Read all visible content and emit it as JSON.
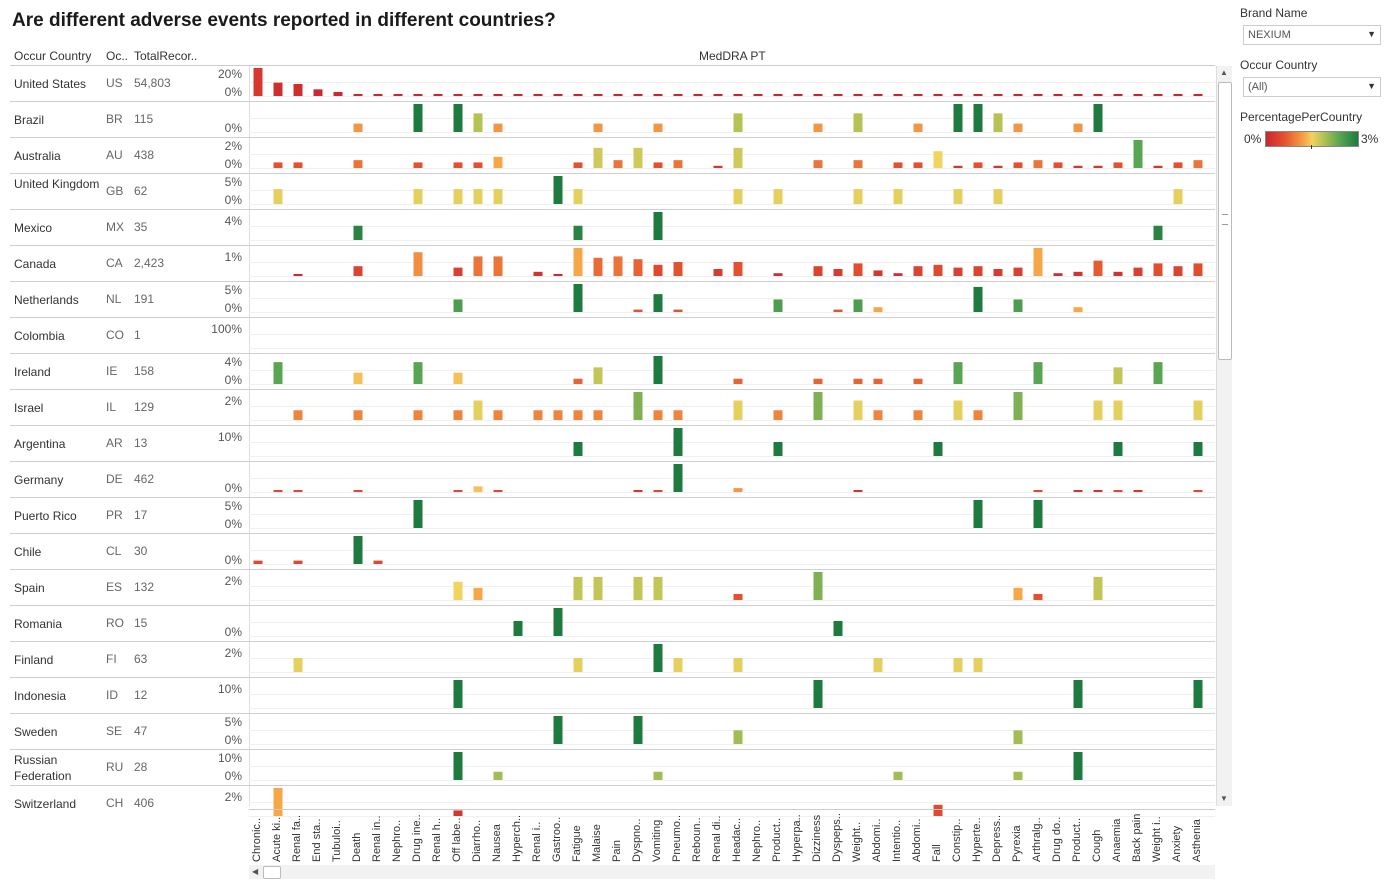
{
  "title": "Are different adverse events reported in different countries?",
  "headers": {
    "country": "Occur Country",
    "code": "Oc..",
    "total": "TotalRecor..",
    "measure": "MedDRA PT"
  },
  "sidebar": {
    "brand_label": "Brand Name",
    "brand_value": "NEXIUM",
    "country_label": "Occur Country",
    "country_value": "(All)",
    "legend_title": "PercentagePerCountry",
    "legend_min": "0%",
    "legend_max": "3%"
  },
  "colors": {
    "scale": [
      "#c9262e",
      "#e3522f",
      "#f6a748",
      "#f1d361",
      "#b7c255",
      "#59a553",
      "#1e7a3e"
    ]
  },
  "chart_data": {
    "type": "bar",
    "title": "Are different adverse events reported in different countries?",
    "measure": "PercentagePerCountry",
    "categories": [
      "Chronic..",
      "Acute ki..",
      "Renal fa..",
      "End sta..",
      "Tubuloi..",
      "Death",
      "Renal in..",
      "Nephro..",
      "Drug ine..",
      "Renal h..",
      "Off labe..",
      "Diarrho..",
      "Nausea",
      "Hyperch..",
      "Renal i..",
      "Gastroo..",
      "Fatigue",
      "Malaise",
      "Pain",
      "Dyspno..",
      "Vomiting",
      "Pneumo..",
      "Reboun..",
      "Renal di..",
      "Headac..",
      "Nephro..",
      "Product..",
      "Hyperpa..",
      "Dizziness",
      "Dyspeps..",
      "Weight..",
      "Abdomi..",
      "Intentio..",
      "Abdomi..",
      "Fall",
      "Constip..",
      "Hyperte..",
      "Depress..",
      "Pyrexia",
      "Arthralg..",
      "Drug do..",
      "Product..",
      "Cough",
      "Anaemia",
      "Back pain",
      "Weight i..",
      "Anxiety",
      "Asthenia"
    ],
    "rows": [
      {
        "country": "United States",
        "code": "US",
        "total": "54,803",
        "ticks": [
          "20%",
          "0%"
        ],
        "values": [
          0.21,
          0.1,
          0.09,
          0.05,
          0.03,
          0.01,
          0.01,
          0.01,
          0.01,
          0.01,
          0.01,
          0.005,
          0.005,
          0.005,
          0.005,
          0.005,
          0.005,
          0.005,
          0.005,
          0.005,
          0.005,
          0.005,
          0.005,
          0.005,
          0.005,
          0.005,
          0.005,
          0.005,
          0.005,
          0.005,
          0.005,
          0.005,
          0.005,
          0.005,
          0.005,
          0.005,
          0.005,
          0.005,
          0.005,
          0.005,
          0.005,
          0.005,
          0.005,
          0.005,
          0.005,
          0.005,
          0.005,
          0.005
        ]
      },
      {
        "country": "Brazil",
        "code": "BR",
        "total": "115",
        "ticks": [
          "0%"
        ],
        "values": [
          0,
          0,
          0,
          0,
          0,
          0.9,
          0,
          0,
          3.0,
          0,
          3.0,
          2.0,
          0.9,
          0,
          0,
          0,
          0,
          0.9,
          0,
          0,
          0.9,
          0,
          0,
          0,
          2.0,
          0,
          0,
          0,
          0.9,
          0,
          2.0,
          0,
          0,
          0.9,
          0,
          3.0,
          3.0,
          2.0,
          0.9,
          0,
          0,
          0.9,
          3.0,
          0,
          0,
          0,
          0,
          0
        ]
      },
      {
        "country": "Australia",
        "code": "AU",
        "total": "438",
        "ticks": [
          "2%",
          "0%"
        ],
        "values": [
          0,
          0.5,
          0.5,
          0,
          0,
          0.7,
          0,
          0,
          0.5,
          0,
          0.5,
          0.5,
          1.0,
          0,
          0,
          0,
          0.5,
          1.8,
          0.7,
          1.8,
          0.5,
          0.7,
          0,
          0.2,
          1.8,
          0,
          0,
          0,
          0.7,
          0,
          0.7,
          0,
          0.5,
          0.5,
          1.5,
          0.2,
          0.5,
          0.2,
          0.5,
          0.7,
          0.5,
          0.2,
          0.2,
          0.5,
          2.5,
          0.2,
          0.5,
          0.7
        ]
      },
      {
        "country": "United Kingdom",
        "code": "GB",
        "total": "62",
        "ticks": [
          "5%",
          "0%"
        ],
        "values": [
          0,
          1.6,
          0,
          0,
          0,
          0,
          0,
          0,
          1.6,
          0,
          1.6,
          1.6,
          1.6,
          0,
          0,
          3.0,
          1.6,
          0,
          0,
          0,
          0,
          0,
          0,
          0,
          1.6,
          0,
          1.6,
          0,
          0,
          0,
          1.6,
          0,
          1.6,
          0,
          0,
          1.6,
          0,
          1.6,
          0,
          0,
          0,
          0,
          0,
          0,
          0,
          0,
          1.6,
          0
        ]
      },
      {
        "country": "Mexico",
        "code": "MX",
        "total": "35",
        "ticks": [
          "4%"
        ],
        "values": [
          0,
          0,
          0,
          0,
          0,
          2.9,
          0,
          0,
          0,
          0,
          0,
          0,
          0,
          0,
          0,
          0,
          2.9,
          0,
          0,
          0,
          5.7,
          0,
          0,
          0,
          0,
          0,
          0,
          0,
          0,
          0,
          0,
          0,
          0,
          0,
          0,
          0,
          0,
          0,
          0,
          0,
          0,
          0,
          0,
          0,
          0,
          2.9,
          0,
          0
        ]
      },
      {
        "country": "Canada",
        "code": "CA",
        "total": "2,423",
        "ticks": [
          "1%"
        ],
        "values": [
          0,
          0,
          0.05,
          0,
          0,
          0.35,
          0,
          0,
          0.85,
          0,
          0.3,
          0.7,
          0.7,
          0,
          0.15,
          0.05,
          1.0,
          0.65,
          0.7,
          0.6,
          0.4,
          0.5,
          0,
          0.25,
          0.5,
          0,
          0.1,
          0,
          0.35,
          0.25,
          0.45,
          0.2,
          0.1,
          0.35,
          0.4,
          0.3,
          0.35,
          0.25,
          0.3,
          1.0,
          0.1,
          0.15,
          0.55,
          0.15,
          0.3,
          0.45,
          0.35,
          0.45
        ]
      },
      {
        "country": "Netherlands",
        "code": "NL",
        "total": "191",
        "ticks": [
          "5%",
          "0%"
        ],
        "values": [
          0,
          0,
          0,
          0,
          0,
          0,
          0,
          0,
          0,
          0,
          2.6,
          0,
          0,
          0,
          0,
          0,
          5.8,
          0,
          0,
          0.5,
          3.7,
          0.5,
          0,
          0,
          0,
          0,
          2.6,
          0,
          0,
          0.5,
          2.6,
          1.0,
          0,
          0,
          0,
          0,
          5.2,
          0,
          2.6,
          0,
          0,
          1.0,
          0,
          0,
          0,
          0,
          0,
          0
        ]
      },
      {
        "country": "Colombia",
        "code": "CO",
        "total": "1",
        "ticks": [
          "100%"
        ],
        "values": [
          0,
          0,
          0,
          0,
          0,
          0,
          0,
          0,
          0,
          0,
          0,
          0,
          0,
          0,
          0,
          0,
          0,
          0,
          0,
          0,
          0,
          0,
          0,
          0,
          0,
          0,
          0,
          0,
          0,
          0,
          0,
          0,
          0,
          0,
          0,
          0,
          0,
          0,
          0,
          0,
          0,
          0,
          0,
          0,
          0,
          0,
          0,
          0
        ]
      },
      {
        "country": "Ireland",
        "code": "IE",
        "total": "158",
        "ticks": [
          "4%",
          "0%"
        ],
        "values": [
          0,
          2.5,
          0,
          0,
          0,
          1.3,
          0,
          0,
          2.5,
          0,
          1.3,
          0,
          0,
          0,
          0,
          0,
          0.6,
          1.9,
          0,
          0,
          3.2,
          0,
          0,
          0,
          0.6,
          0,
          0,
          0,
          0.6,
          0,
          0.6,
          0.6,
          0,
          0.6,
          0,
          2.5,
          0,
          0,
          0,
          2.5,
          0,
          0,
          0,
          1.9,
          0,
          2.5,
          0,
          0
        ]
      },
      {
        "country": "Israel",
        "code": "IL",
        "total": "129",
        "ticks": [
          "2%"
        ],
        "values": [
          0,
          0,
          0.8,
          0,
          0,
          0.8,
          0,
          0,
          0.8,
          0,
          0.8,
          1.6,
          0.8,
          0,
          0.8,
          0.8,
          0.8,
          0.8,
          0,
          2.3,
          0.8,
          0.8,
          0,
          0,
          1.6,
          0,
          0.8,
          0,
          2.3,
          0,
          1.6,
          0.8,
          0,
          0.8,
          0,
          1.6,
          0.8,
          0,
          2.3,
          0,
          0,
          0,
          1.6,
          1.6,
          0,
          0,
          0,
          1.6
        ]
      },
      {
        "country": "Argentina",
        "code": "AR",
        "total": "13",
        "ticks": [
          "10%"
        ],
        "values": [
          0,
          0,
          0,
          0,
          0,
          0,
          0,
          0,
          0,
          0,
          0,
          0,
          0,
          0,
          0,
          0,
          7.7,
          0,
          0,
          0,
          0,
          15.4,
          0,
          0,
          0,
          0,
          7.7,
          0,
          0,
          0,
          0,
          0,
          0,
          0,
          7.7,
          0,
          0,
          0,
          0,
          0,
          0,
          0,
          0,
          7.7,
          0,
          0,
          0,
          7.7
        ]
      },
      {
        "country": "Germany",
        "code": "DE",
        "total": "462",
        "ticks": [
          "0%"
        ],
        "values": [
          0,
          0.4,
          0.4,
          0,
          0,
          0.4,
          0,
          0,
          0,
          0,
          0.4,
          1.3,
          0.4,
          0,
          0,
          0,
          0,
          0,
          0,
          0.2,
          0.4,
          6.5,
          0,
          0,
          0.9,
          0,
          0,
          0,
          0,
          0,
          0.2,
          0,
          0,
          0,
          0,
          0,
          0,
          0,
          0,
          0.4,
          0,
          0.2,
          0.2,
          0.4,
          0.2,
          0,
          0,
          0.4
        ]
      },
      {
        "country": "Puerto Rico",
        "code": "PR",
        "total": "17",
        "ticks": [
          "5%",
          "0%"
        ],
        "values": [
          0,
          0,
          0,
          0,
          0,
          0,
          0,
          0,
          5.9,
          0,
          0,
          0,
          0,
          0,
          0,
          0,
          0,
          0,
          0,
          0,
          0,
          0,
          0,
          0,
          0,
          0,
          0,
          0,
          0,
          0,
          0,
          0,
          0,
          0,
          0,
          0,
          5.9,
          0,
          0,
          5.9,
          0,
          0,
          0,
          0,
          0,
          0,
          0,
          0
        ]
      },
      {
        "country": "Chile",
        "code": "CL",
        "total": "30",
        "ticks": [
          "0%"
        ],
        "values": [
          0.4,
          0,
          0.4,
          0,
          0,
          3.3,
          0.4,
          0,
          0,
          0,
          0,
          0,
          0,
          0,
          0,
          0,
          0,
          0,
          0,
          0,
          0,
          0,
          0,
          0,
          0,
          0,
          0,
          0,
          0,
          0,
          0,
          0,
          0,
          0,
          0,
          0,
          0,
          0,
          0,
          0,
          0,
          0,
          0,
          0,
          0,
          0,
          0,
          0
        ]
      },
      {
        "country": "Spain",
        "code": "ES",
        "total": "132",
        "ticks": [
          "2%"
        ],
        "values": [
          0,
          0,
          0,
          0,
          0,
          0,
          0,
          0,
          0,
          0,
          1.5,
          1.0,
          0,
          0,
          0,
          0,
          1.9,
          1.9,
          0,
          1.9,
          1.9,
          0,
          0,
          0,
          0.5,
          0,
          0,
          0,
          2.3,
          0,
          0,
          0,
          0,
          0,
          0,
          0,
          0,
          0,
          1.0,
          0.5,
          0,
          0,
          1.9,
          0,
          0,
          0,
          0,
          0
        ]
      },
      {
        "country": "Romania",
        "code": "RO",
        "total": "15",
        "ticks": [
          "0%"
        ],
        "values": [
          0,
          0,
          0,
          0,
          0,
          0,
          0,
          0,
          0,
          0,
          0,
          0,
          0,
          3.6,
          0,
          6.7,
          0,
          0,
          0,
          0,
          0,
          0,
          0,
          0,
          0,
          0,
          0,
          0,
          0,
          3.6,
          0,
          0,
          0,
          0,
          0,
          0,
          0,
          0,
          0,
          0,
          0,
          0,
          0,
          0,
          0,
          0,
          0,
          0
        ]
      },
      {
        "country": "Finland",
        "code": "FI",
        "total": "63",
        "ticks": [
          "2%"
        ],
        "values": [
          0,
          0,
          1.6,
          0,
          0,
          0,
          0,
          0,
          0,
          0,
          0,
          0,
          0,
          0,
          0,
          0,
          1.6,
          0,
          0,
          0,
          3.2,
          1.6,
          0,
          0,
          1.6,
          0,
          0,
          0,
          0,
          0,
          0,
          1.6,
          0,
          0,
          0,
          1.6,
          1.6,
          0,
          0,
          0,
          0,
          0,
          0,
          0,
          0,
          0,
          0,
          0
        ]
      },
      {
        "country": "Indonesia",
        "code": "ID",
        "total": "12",
        "ticks": [
          "10%"
        ],
        "values": [
          0,
          0,
          0,
          0,
          0,
          0,
          0,
          0,
          0,
          0,
          8.3,
          0,
          0,
          0,
          0,
          0,
          0,
          0,
          0,
          0,
          0,
          0,
          0,
          0,
          0,
          0,
          0,
          0,
          8.3,
          0,
          0,
          0,
          0,
          0,
          0,
          0,
          0,
          0,
          0,
          0,
          0,
          8.3,
          0,
          0,
          0,
          0,
          0,
          8.3
        ]
      },
      {
        "country": "Sweden",
        "code": "SE",
        "total": "47",
        "ticks": [
          "5%",
          "0%"
        ],
        "values": [
          0,
          0,
          0,
          0,
          0,
          0,
          0,
          0,
          0,
          0,
          0,
          0,
          0,
          0,
          0,
          4.3,
          0,
          0,
          0,
          4.3,
          0,
          0,
          0,
          0,
          2.1,
          0,
          0,
          0,
          0,
          0,
          0,
          0,
          0,
          0,
          0,
          0,
          0,
          0,
          2.1,
          0,
          0,
          0,
          0,
          0,
          0,
          0,
          0,
          0
        ]
      },
      {
        "country": "Russian Federation",
        "code": "RU",
        "total": "28",
        "ticks": [
          "10%",
          "0%"
        ],
        "values": [
          0,
          0,
          0,
          0,
          0,
          0,
          0,
          0,
          0,
          0,
          7.1,
          0,
          2.1,
          0,
          0,
          0,
          0,
          0,
          0,
          0,
          2.1,
          0,
          0,
          0,
          0,
          0,
          0,
          0,
          0,
          0,
          0,
          0,
          2.1,
          0,
          0,
          0,
          0,
          0,
          2.1,
          0,
          0,
          7.1,
          0,
          0,
          0,
          0,
          0,
          0
        ]
      },
      {
        "country": "Switzerland",
        "code": "CH",
        "total": "406",
        "ticks": [
          "2%"
        ],
        "values": [
          0,
          1.0,
          0,
          0,
          0,
          0,
          0,
          0,
          0,
          0,
          0.2,
          0,
          0,
          0,
          0,
          0,
          0,
          0,
          0,
          0,
          0,
          0,
          0,
          0,
          0,
          0,
          0,
          0,
          0,
          0,
          0,
          0,
          0,
          0,
          0.4,
          0,
          0,
          0,
          0,
          0,
          0,
          0,
          0,
          0,
          0,
          0,
          0,
          0
        ]
      }
    ],
    "color_scale": {
      "min": 0,
      "max": 3,
      "unit": "%"
    }
  }
}
